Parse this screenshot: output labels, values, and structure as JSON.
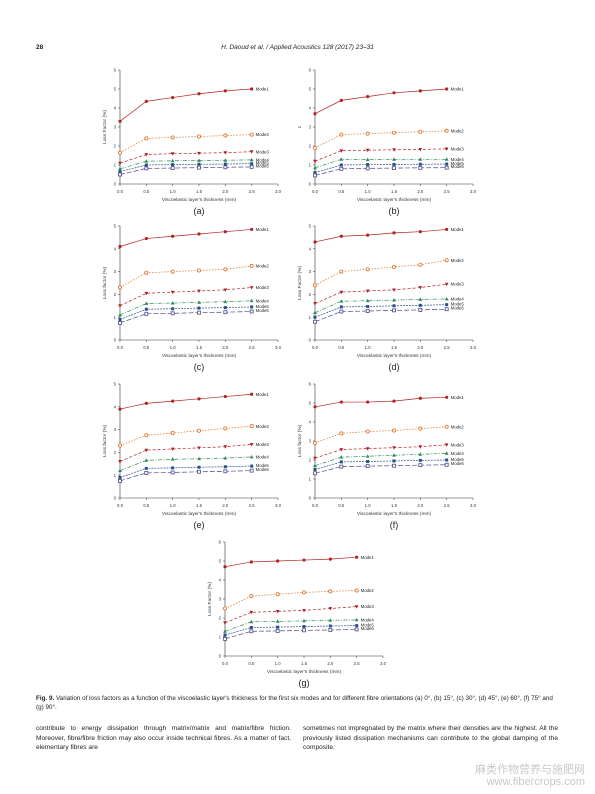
{
  "header": {
    "page_number": "28",
    "journal": "H. Daoud et al. / Applied Acoustics 128 (2017) 23–31"
  },
  "figure": {
    "caption_label": "Fig. 9.",
    "caption_text": "Variation of loss factors as a function of the viscoelastic layer's thickness for the first six modes and for different fibre orientations (a) 0°, (b) 15°, (c) 30°, (d) 45°, (e) 60°, (f) 75° and (g) 90°."
  },
  "body": {
    "col1": "contribute to energy dissipation through matrix/matrix and matrix/fibre friction. Moreover, fibre/fibre friction may also occur inside technical fibres. As a matter of fact, elementary fibres are",
    "col2": "sometimes not impregnated by the matrix where their densities are the highest. All the previously listed dissipation mechanisms can contribute to the global damping of the composite."
  },
  "watermark": {
    "line1": "麻类作物营养与施肥网",
    "line2": "www.fibercrops.com"
  },
  "chart_data": [
    {
      "type": "line",
      "panel_label": "(a)",
      "xlabel": "Viscoelastic layer's thickness (mm)",
      "ylabel": "Loss Factor (%)",
      "xlim": [
        0,
        3
      ],
      "ylim": [
        0,
        6
      ],
      "xticks": [
        "0.0",
        "0.5",
        "1.0",
        "1.5",
        "2.0",
        "2.5",
        "3.0"
      ],
      "yticks": [
        "0",
        "1",
        "2",
        "3",
        "4",
        "5",
        "6"
      ],
      "x": [
        0,
        0.5,
        1,
        1.5,
        2,
        2.5
      ],
      "series": [
        {
          "name": "Mode1",
          "values": [
            3.3,
            4.35,
            4.55,
            4.75,
            4.9,
            5.0
          ]
        },
        {
          "name": "Mode2",
          "values": [
            1.65,
            2.4,
            2.45,
            2.5,
            2.55,
            2.6
          ]
        },
        {
          "name": "Mode3",
          "values": [
            1.1,
            1.55,
            1.6,
            1.62,
            1.65,
            1.7
          ]
        },
        {
          "name": "Mode4",
          "values": [
            0.8,
            1.2,
            1.22,
            1.24,
            1.25,
            1.27
          ]
        },
        {
          "name": "Mode5",
          "values": [
            0.65,
            1.0,
            1.02,
            1.04,
            1.05,
            1.07
          ]
        },
        {
          "name": "Mode6",
          "values": [
            0.5,
            0.82,
            0.84,
            0.86,
            0.88,
            0.9
          ]
        }
      ]
    },
    {
      "type": "line",
      "panel_label": "(b)",
      "xlabel": "Viscoelastic layer's thickness (mm)",
      "ylabel": "c",
      "xlim": [
        0,
        3
      ],
      "ylim": [
        0,
        6
      ],
      "xticks": [
        "0.0",
        "0.5",
        "1.0",
        "1.5",
        "2.0",
        "2.5",
        "3.0"
      ],
      "yticks": [
        "0",
        "1",
        "2",
        "3",
        "4",
        "5",
        "6"
      ],
      "x": [
        0,
        0.5,
        1,
        1.5,
        2,
        2.5
      ],
      "series": [
        {
          "name": "Mode1",
          "values": [
            3.7,
            4.4,
            4.6,
            4.8,
            4.9,
            5.0
          ]
        },
        {
          "name": "Mode2",
          "values": [
            1.9,
            2.6,
            2.65,
            2.7,
            2.75,
            2.8
          ]
        },
        {
          "name": "Mode3",
          "values": [
            1.2,
            1.75,
            1.78,
            1.8,
            1.82,
            1.85
          ]
        },
        {
          "name": "Mode4",
          "values": [
            0.85,
            1.3,
            1.28,
            1.3,
            1.3,
            1.3
          ]
        },
        {
          "name": "Mode5",
          "values": [
            0.6,
            1.0,
            1.02,
            1.03,
            1.04,
            1.05
          ]
        },
        {
          "name": "Mode6",
          "values": [
            0.45,
            0.8,
            0.82,
            0.84,
            0.85,
            0.86
          ]
        }
      ]
    },
    {
      "type": "line",
      "panel_label": "(c)",
      "xlabel": "Viscoelastic layer's thickness (mm)",
      "ylabel": "Loss factor (%)",
      "xlim": [
        0,
        3
      ],
      "ylim": [
        0,
        5
      ],
      "xticks": [
        "0.0",
        "0.5",
        "1.0",
        "1.5",
        "2.0",
        "2.5",
        "3.0"
      ],
      "yticks": [
        "0",
        "1",
        "2",
        "3",
        "4",
        "5"
      ],
      "x": [
        0,
        0.5,
        1,
        1.5,
        2,
        2.5
      ],
      "series": [
        {
          "name": "Mode1",
          "values": [
            4.1,
            4.45,
            4.55,
            4.65,
            4.75,
            4.85
          ]
        },
        {
          "name": "Mode2",
          "values": [
            2.3,
            2.95,
            3.0,
            3.05,
            3.1,
            3.25
          ]
        },
        {
          "name": "Mode3",
          "values": [
            1.5,
            2.05,
            2.1,
            2.15,
            2.2,
            2.3
          ]
        },
        {
          "name": "Mode4",
          "values": [
            1.1,
            1.6,
            1.62,
            1.65,
            1.68,
            1.72
          ]
        },
        {
          "name": "Mode5",
          "values": [
            0.9,
            1.35,
            1.37,
            1.4,
            1.42,
            1.45
          ]
        },
        {
          "name": "Mode6",
          "values": [
            0.75,
            1.15,
            1.17,
            1.2,
            1.22,
            1.25
          ]
        }
      ]
    },
    {
      "type": "line",
      "panel_label": "(d)",
      "xlabel": "Viscoelastic layer's thickness (mm)",
      "ylabel": "Loss Factor (%)",
      "xlim": [
        0,
        3
      ],
      "ylim": [
        0,
        5
      ],
      "xticks": [
        "0.0",
        "0.5",
        "1.0",
        "1.5",
        "2.0",
        "2.5",
        "3.0"
      ],
      "yticks": [
        "0",
        "1",
        "2",
        "3",
        "4",
        "5"
      ],
      "x": [
        0,
        0.5,
        1,
        1.5,
        2,
        2.5
      ],
      "series": [
        {
          "name": "Mode1",
          "values": [
            4.3,
            4.55,
            4.6,
            4.7,
            4.75,
            4.85
          ]
        },
        {
          "name": "Mode2",
          "values": [
            2.4,
            3.0,
            3.1,
            3.2,
            3.3,
            3.5
          ]
        },
        {
          "name": "Mode3",
          "values": [
            1.6,
            2.1,
            2.15,
            2.2,
            2.3,
            2.45
          ]
        },
        {
          "name": "Mode4",
          "values": [
            1.2,
            1.7,
            1.72,
            1.75,
            1.78,
            1.8
          ]
        },
        {
          "name": "Mode5",
          "values": [
            1.0,
            1.45,
            1.47,
            1.5,
            1.52,
            1.55
          ]
        },
        {
          "name": "Mode6",
          "values": [
            0.8,
            1.25,
            1.27,
            1.3,
            1.32,
            1.35
          ]
        }
      ]
    },
    {
      "type": "line",
      "panel_label": "(e)",
      "xlabel": "Viscoelastic layer's thickness (mm)",
      "ylabel": "Loss factor (%)",
      "xlim": [
        0,
        3
      ],
      "ylim": [
        0,
        5
      ],
      "xticks": [
        "0.0",
        "0.5",
        "1.0",
        "1.5",
        "2.0",
        "2.5",
        "3.0"
      ],
      "yticks": [
        "0",
        "1",
        "2",
        "3",
        "4",
        "5"
      ],
      "x": [
        0,
        0.5,
        1,
        1.5,
        2,
        2.5
      ],
      "series": [
        {
          "name": "Mode1",
          "values": [
            3.9,
            4.15,
            4.25,
            4.35,
            4.45,
            4.55
          ]
        },
        {
          "name": "Mode2",
          "values": [
            2.3,
            2.75,
            2.85,
            2.95,
            3.05,
            3.15
          ]
        },
        {
          "name": "Mode3",
          "values": [
            1.6,
            2.1,
            2.15,
            2.2,
            2.25,
            2.35
          ]
        },
        {
          "name": "Mode4",
          "values": [
            1.2,
            1.65,
            1.7,
            1.72,
            1.75,
            1.8
          ]
        },
        {
          "name": "Mode5",
          "values": [
            0.9,
            1.3,
            1.32,
            1.35,
            1.37,
            1.4
          ]
        },
        {
          "name": "Mode6",
          "values": [
            0.75,
            1.1,
            1.12,
            1.15,
            1.17,
            1.2
          ]
        }
      ]
    },
    {
      "type": "line",
      "panel_label": "(f)",
      "xlabel": "Viscoelastic layer's thickness (mm)",
      "ylabel": "Loss factor (%)",
      "xlim": [
        0,
        3
      ],
      "ylim": [
        0,
        6
      ],
      "xticks": [
        "0.0",
        "0.5",
        "1.0",
        "1.5",
        "2.0",
        "2.5",
        "3.0"
      ],
      "yticks": [
        "0",
        "1",
        "2",
        "3",
        "4",
        "5",
        "6"
      ],
      "x": [
        0,
        0.5,
        1,
        1.5,
        2,
        2.5
      ],
      "series": [
        {
          "name": "Mode1",
          "values": [
            4.8,
            5.05,
            5.05,
            5.1,
            5.25,
            5.3
          ]
        },
        {
          "name": "Mode2",
          "values": [
            2.9,
            3.4,
            3.5,
            3.55,
            3.65,
            3.75
          ]
        },
        {
          "name": "Mode3",
          "values": [
            2.1,
            2.55,
            2.6,
            2.65,
            2.7,
            2.8
          ]
        },
        {
          "name": "Mode4",
          "values": [
            1.7,
            2.15,
            2.2,
            2.25,
            2.3,
            2.35
          ]
        },
        {
          "name": "Mode5",
          "values": [
            1.5,
            1.9,
            1.92,
            1.95,
            1.98,
            2.0
          ]
        },
        {
          "name": "Mode6",
          "values": [
            1.3,
            1.65,
            1.68,
            1.7,
            1.73,
            1.75
          ]
        }
      ]
    },
    {
      "type": "line",
      "panel_label": "(g)",
      "xlabel": "Viscoelastic layer's thickness (mm)",
      "ylabel": "Loss Factor (%)",
      "xlim": [
        0,
        3
      ],
      "ylim": [
        0,
        6
      ],
      "xticks": [
        "0.0",
        "0.5",
        "1.0",
        "1.5",
        "2.0",
        "2.5",
        "3.0"
      ],
      "yticks": [
        "0",
        "1",
        "2",
        "3",
        "4",
        "5",
        "6"
      ],
      "x": [
        0,
        0.5,
        1,
        1.5,
        2,
        2.5
      ],
      "series": [
        {
          "name": "Mode1",
          "values": [
            4.7,
            4.95,
            5.0,
            5.05,
            5.1,
            5.2
          ]
        },
        {
          "name": "Mode2",
          "values": [
            2.5,
            3.15,
            3.25,
            3.35,
            3.4,
            3.45
          ]
        },
        {
          "name": "Mode3",
          "values": [
            1.75,
            2.3,
            2.35,
            2.4,
            2.5,
            2.6
          ]
        },
        {
          "name": "Mode4",
          "values": [
            1.3,
            1.8,
            1.82,
            1.85,
            1.88,
            1.9
          ]
        },
        {
          "name": "Mode5",
          "values": [
            1.1,
            1.5,
            1.52,
            1.55,
            1.58,
            1.6
          ]
        },
        {
          "name": "Mode6",
          "values": [
            0.9,
            1.3,
            1.32,
            1.35,
            1.37,
            1.4
          ]
        }
      ]
    }
  ],
  "series_styles": [
    {
      "color": "#b22222",
      "marker": "circle-filled",
      "dash": ""
    },
    {
      "color": "#e07020",
      "marker": "circle-open",
      "dash": "1.5,1.5"
    },
    {
      "color": "#b22222",
      "marker": "triangle-down",
      "dash": "3,2"
    },
    {
      "color": "#2e8b57",
      "marker": "triangle-up",
      "dash": "4,1.5,1,1.5"
    },
    {
      "color": "#2a4f8f",
      "marker": "square",
      "dash": "2,1"
    },
    {
      "color": "#4a4a8a",
      "marker": "square-open",
      "dash": "5,2"
    }
  ]
}
